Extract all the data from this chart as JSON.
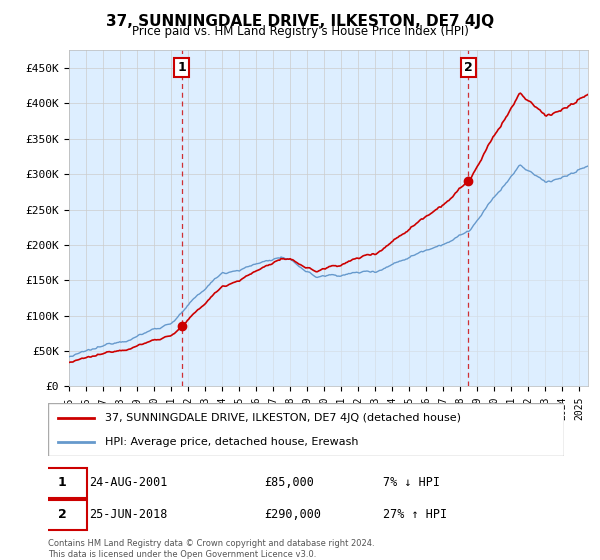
{
  "title": "37, SUNNINGDALE DRIVE, ILKESTON, DE7 4JQ",
  "subtitle": "Price paid vs. HM Land Registry's House Price Index (HPI)",
  "property_label": "37, SUNNINGDALE DRIVE, ILKESTON, DE7 4JQ (detached house)",
  "hpi_label": "HPI: Average price, detached house, Erewash",
  "property_color": "#cc0000",
  "hpi_color": "#6699cc",
  "hpi_fill_color": "#ddeeff",
  "sale1_year": 2001.625,
  "sale1_price": 85000,
  "sale1_label": "1",
  "sale1_date": "24-AUG-2001",
  "sale1_hpi_text": "7% ↓ HPI",
  "sale2_year": 2018.458,
  "sale2_price": 290000,
  "sale2_label": "2",
  "sale2_date": "25-JUN-2018",
  "sale2_hpi_text": "27% ↑ HPI",
  "xlim": [
    1995,
    2025.5
  ],
  "ylim": [
    0,
    475000
  ],
  "yticks": [
    0,
    50000,
    100000,
    150000,
    200000,
    250000,
    300000,
    350000,
    400000,
    450000
  ],
  "ytick_labels": [
    "£0",
    "£50K",
    "£100K",
    "£150K",
    "£200K",
    "£250K",
    "£300K",
    "£350K",
    "£400K",
    "£450K"
  ],
  "background_color": "#ffffff",
  "grid_color": "#cccccc",
  "footnote": "Contains HM Land Registry data © Crown copyright and database right 2024.\nThis data is licensed under the Open Government Licence v3.0."
}
